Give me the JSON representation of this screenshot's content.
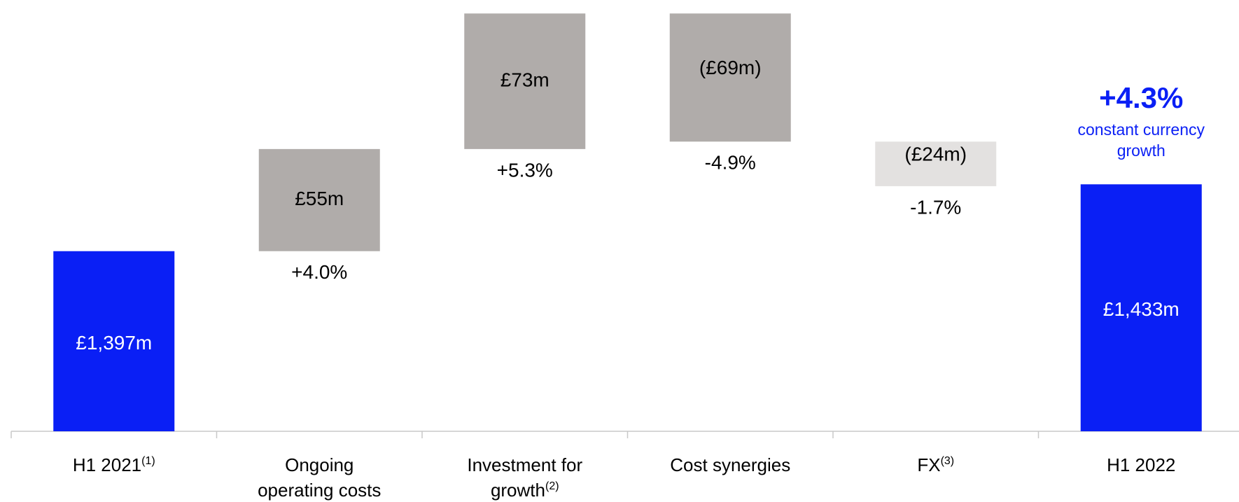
{
  "chart_data": {
    "type": "waterfall",
    "categories": [
      "H1 2021",
      "Ongoing operating costs",
      "Investment for growth",
      "Cost synergies",
      "FX",
      "H1 2022"
    ],
    "category_notes": [
      "(1)",
      null,
      "(2)",
      null,
      "(3)",
      null
    ],
    "values": [
      1397,
      55,
      73,
      -69,
      -24,
      1433
    ],
    "value_labels": [
      "£1,397m",
      "£55m",
      "£73m",
      "(£69m)",
      "(£24m)",
      "£1,433m"
    ],
    "change_labels": [
      null,
      "+4.0%",
      "+5.3%",
      "-4.9%",
      "-1.7%",
      null
    ],
    "totals": [
      true,
      false,
      false,
      false,
      false,
      true
    ],
    "colors": [
      "#0a1ff5",
      "#b0acaa",
      "#b0acaa",
      "#b0acaa",
      "#e3e1e0",
      "#0a1ff5"
    ],
    "ylim": [
      1300,
      1530
    ],
    "annotation": {
      "headline": "+4.3%",
      "text": "constant currency growth"
    }
  }
}
